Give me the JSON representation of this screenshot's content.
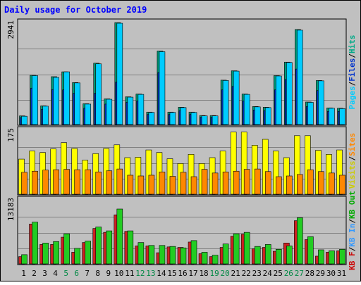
{
  "chart_data": {
    "type": "bar",
    "title": "Daily usage for October 2019",
    "days": [
      "1",
      "2",
      "3",
      "4",
      "5",
      "6",
      "7",
      "8",
      "9",
      "10",
      "11",
      "12",
      "13",
      "14",
      "15",
      "16",
      "17",
      "18",
      "19",
      "20",
      "21",
      "22",
      "23",
      "24",
      "25",
      "26",
      "27",
      "28",
      "29",
      "30",
      "31"
    ],
    "weekend_days": [
      "5",
      "6",
      "12",
      "13",
      "19",
      "20",
      "26",
      "27"
    ],
    "panels": [
      {
        "id": "pages-files-hits",
        "ymax_label": "2941",
        "ymax": 2941,
        "gridlines": 3,
        "legend": [
          {
            "text": "Pages",
            "color": "#00ccff"
          },
          {
            "text": "/",
            "color": "#000000"
          },
          {
            "text": "Files",
            "color": "#0033cc"
          },
          {
            "text": "/",
            "color": "#000000"
          },
          {
            "text": "Hits",
            "color": "#00aa88"
          }
        ],
        "series": [
          {
            "name": "Hits",
            "color": "#009977",
            "values": [
              250,
              1420,
              540,
              1380,
              1520,
              1210,
              600,
              1770,
              740,
              2940,
              800,
              880,
              360,
              2120,
              360,
              500,
              360,
              260,
              260,
              1280,
              1550,
              880,
              520,
              500,
              1410,
              1800,
              2740,
              650,
              1270,
              480,
              470
            ]
          },
          {
            "name": "Files",
            "color": "#0033cc",
            "values": [
              200,
              1050,
              440,
              1010,
              1000,
              900,
              470,
              900,
              590,
              1220,
              640,
              680,
              290,
              1500,
              290,
              400,
              290,
              210,
              210,
              1000,
              1100,
              680,
              420,
              400,
              1000,
              1300,
              1600,
              520,
              980,
              380,
              380
            ]
          },
          {
            "name": "Pages",
            "color": "#00ccff",
            "values": [
              240,
              1410,
              530,
              1360,
              1520,
              1200,
              590,
              1750,
              730,
              2920,
              790,
              870,
              350,
              2100,
              350,
              490,
              350,
              250,
              250,
              1270,
              1540,
              870,
              510,
              490,
              1400,
              1790,
              2720,
              640,
              1260,
              470,
              460
            ]
          }
        ]
      },
      {
        "id": "visits-sites",
        "ymax_label": "175",
        "ymax": 175,
        "gridlines": 3,
        "legend": [
          {
            "text": "Visits",
            "color": "#cccc00"
          },
          {
            "text": "/",
            "color": "#000000"
          },
          {
            "text": "Sites",
            "color": "#ff8800"
          }
        ],
        "series": [
          {
            "name": "Visits",
            "color": "#ffff00",
            "values": [
              96,
              118,
              114,
              124,
              141,
              125,
              93,
              111,
              125,
              135,
              100,
              101,
              121,
              114,
              97,
              84,
              109,
              84,
              100,
              118,
              170,
              170,
              134,
              150,
              118,
              100,
              160,
              160,
              120,
              109,
              121
            ]
          },
          {
            "name": "Sites",
            "color": "#ff8800",
            "values": [
              60,
              63,
              66,
              67,
              68,
              67,
              67,
              61,
              64,
              69,
              52,
              50,
              52,
              61,
              49,
              60,
              48,
              68,
              58,
              61,
              63,
              68,
              69,
              62,
              48,
              50,
              54,
              67,
              62,
              58,
              52
            ]
          }
        ]
      },
      {
        "id": "kb",
        "ymax_label": "13183",
        "ymax": 13183,
        "gridlines": 3,
        "legend": [
          {
            "text": "KB F",
            "color": "#cc0000"
          },
          {
            "text": "/",
            "color": "#000000"
          },
          {
            "text": "KB In",
            "color": "#3399ff"
          },
          {
            "text": "/",
            "color": "#000000"
          },
          {
            "text": "KB Out",
            "color": "#00aa00"
          }
        ],
        "series": [
          {
            "name": "KB F",
            "color": "#cc2222",
            "values": [
              1500,
              8200,
              4000,
              4000,
              5500,
              2400,
              4400,
              7300,
              6500,
              10100,
              6700,
              3700,
              3700,
              2300,
              3500,
              3400,
              4500,
              2100,
              1500,
              3400,
              5700,
              6100,
              3100,
              3400,
              2600,
              4300,
              8900,
              5000,
              1600,
              2400,
              2700
            ]
          },
          {
            "name": "KB Out",
            "color": "#22cc22",
            "values": [
              1900,
              8600,
              4300,
              4600,
              6200,
              3200,
              4700,
              7600,
              6800,
              11300,
              6800,
              4400,
              3800,
              3800,
              3600,
              3300,
              4800,
              2400,
              1800,
              4100,
              6200,
              6500,
              3600,
              4000,
              3000,
              3700,
              9500,
              5600,
              2900,
              2700,
              3000
            ]
          }
        ]
      }
    ]
  }
}
